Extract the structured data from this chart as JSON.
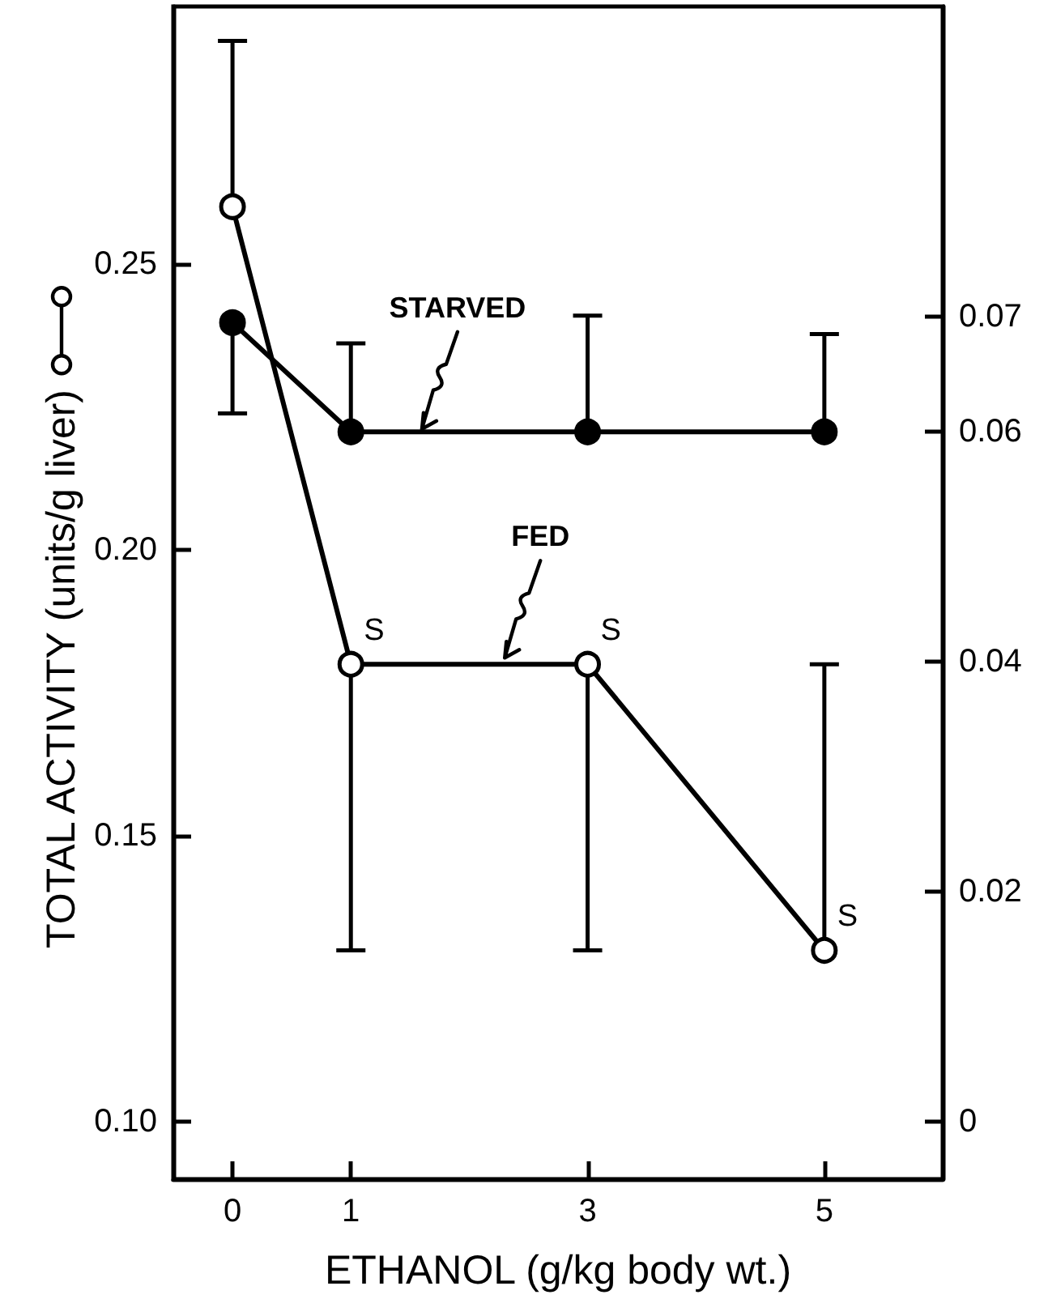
{
  "chart_data": {
    "type": "line",
    "xlabel": "ETHANOL (g/kg body wt.)",
    "ylabel": "TOTAL ACTIVITY (units/g liver)",
    "x": [
      0,
      1,
      3,
      5
    ],
    "xlim": [
      -0.5,
      6
    ],
    "xticks": [
      0,
      1,
      3,
      5
    ],
    "ylim": [
      0.09,
      0.295
    ],
    "yticks": [
      {
        "value": 0.1,
        "label": "0.10"
      },
      0.15,
      {
        "value": 0.2,
        "label": "0.20"
      },
      0.25
    ],
    "y2lim": [
      -0.005,
      0.097
    ],
    "y2ticks": [
      0,
      0.02,
      0.04,
      0.06,
      0.07
    ],
    "marker": "circle",
    "line_style": "solid",
    "grid": false,
    "series": [
      {
        "color": "#000000",
        "axis": "y2",
        "values": [
          0.0695,
          0.06,
          0.06,
          0.06
        ],
        "errors": [
          [
            0.0616,
            0.0695
          ],
          [
            0.06,
            0.0677
          ],
          [
            0.06,
            0.0701
          ],
          [
            0.06,
            0.0685
          ]
        ]
      },
      {
        "color": "#000000",
        "axis": "y",
        "values": [
          0.26,
          0.18,
          0.18,
          0.13
        ],
        "errors": [
          [
            0.26,
            0.289
          ],
          [
            0.13,
            0.18
          ],
          [
            0.13,
            0.18
          ],
          [
            0.13,
            0.18
          ]
        ]
      }
    ],
    "annotations": [
      {
        "text": "STARVED",
        "x": 1.6,
        "y": 0.22
      },
      {
        "text": "FED",
        "x": 2.3,
        "y": 0.18
      },
      {
        "text": "S",
        "x": 1,
        "y": 0.18
      },
      {
        "text": "S",
        "x": 3,
        "y": 0.18
      },
      {
        "text": "S",
        "x": 5,
        "y": 0.13
      }
    ]
  }
}
